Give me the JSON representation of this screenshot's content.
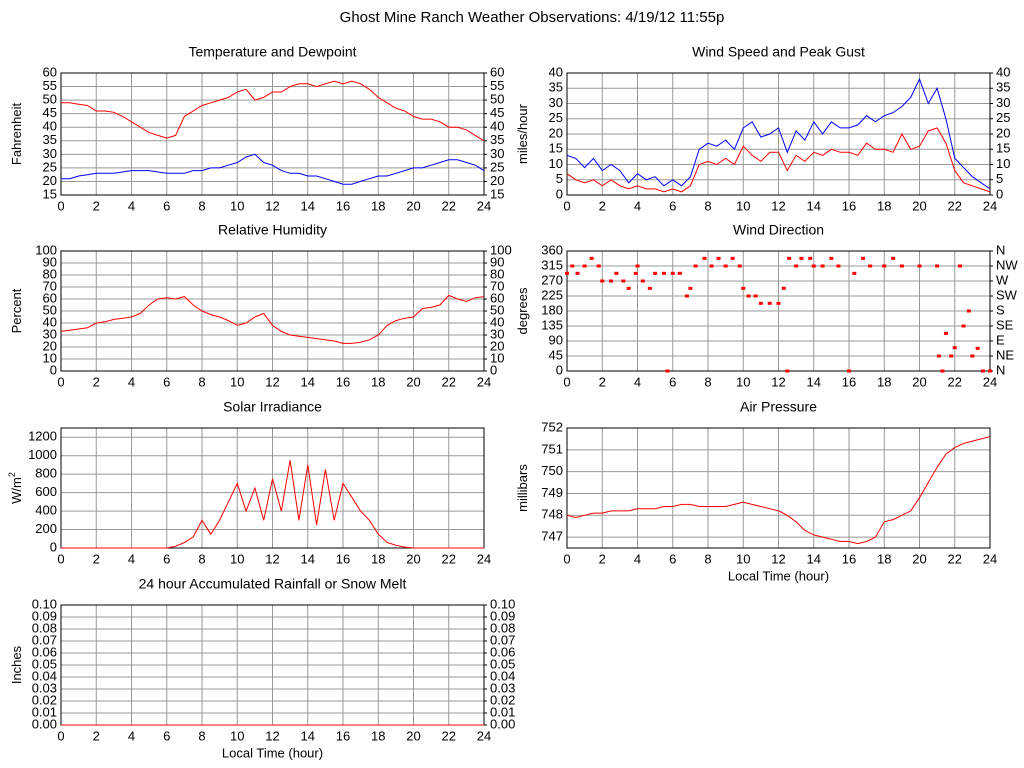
{
  "title": "Ghost Mine Ranch Weather Observations: 4/19/12 11:55p",
  "chart_data": [
    {
      "type": "line",
      "title": "Temperature and Dewpoint",
      "ylabel": "Fahrenheit",
      "x": [
        0,
        0.5,
        1,
        1.5,
        2,
        2.5,
        3,
        3.5,
        4,
        4.5,
        5,
        5.5,
        6,
        6.5,
        7,
        7.5,
        8,
        8.5,
        9,
        9.5,
        10,
        10.5,
        11,
        11.5,
        12,
        12.5,
        13,
        13.5,
        14,
        14.5,
        15,
        15.5,
        16,
        16.5,
        17,
        17.5,
        18,
        18.5,
        19,
        19.5,
        20,
        20.5,
        21,
        21.5,
        22,
        22.5,
        23,
        23.5,
        24
      ],
      "series": [
        {
          "color": "#ff0000",
          "values": [
            49,
            49,
            48.5,
            48,
            46,
            46,
            45.5,
            44,
            42,
            40,
            38,
            37,
            36,
            37,
            44,
            46,
            48,
            49,
            50,
            51,
            53,
            54,
            50,
            51,
            53,
            53,
            55,
            56,
            56,
            55,
            56,
            57,
            56,
            57,
            56,
            54,
            51,
            49,
            47,
            46,
            44,
            43,
            43,
            42,
            40,
            40,
            39,
            37,
            35
          ]
        },
        {
          "color": "#0000ff",
          "values": [
            21,
            21,
            22,
            22.5,
            23,
            23,
            23,
            23.5,
            24,
            24,
            24,
            23.5,
            23,
            23,
            23,
            24,
            24,
            25,
            25,
            26,
            27,
            29,
            30,
            27,
            26,
            24,
            23,
            23,
            22,
            22,
            21,
            20,
            19,
            19,
            20,
            21,
            22,
            22,
            23,
            24,
            25,
            25,
            26,
            27,
            28,
            28,
            27,
            26,
            24
          ]
        }
      ],
      "xlim": [
        0,
        24
      ],
      "xticks": [
        0,
        2,
        4,
        6,
        8,
        10,
        12,
        14,
        16,
        18,
        20,
        22,
        24
      ],
      "ylim": [
        15,
        60
      ],
      "yticks": [
        15,
        20,
        25,
        30,
        35,
        40,
        45,
        50,
        55,
        60
      ],
      "y2lim": [
        15,
        60
      ],
      "y2ticks": [
        15,
        20,
        25,
        30,
        35,
        40,
        45,
        50,
        55,
        60
      ],
      "grid": true
    },
    {
      "type": "line",
      "title": "Wind Speed and Peak Gust",
      "ylabel": "miles/hour",
      "x": [
        0,
        0.5,
        1,
        1.5,
        2,
        2.5,
        3,
        3.5,
        4,
        4.5,
        5,
        5.5,
        6,
        6.5,
        7,
        7.5,
        8,
        8.5,
        9,
        9.5,
        10,
        10.5,
        11,
        11.5,
        12,
        12.5,
        13,
        13.5,
        14,
        14.5,
        15,
        15.5,
        16,
        16.5,
        17,
        17.5,
        18,
        18.5,
        19,
        19.5,
        20,
        20.5,
        21,
        21.5,
        22,
        22.5,
        23,
        23.5,
        24
      ],
      "series": [
        {
          "color": "#ff0000",
          "values": [
            7,
            5,
            4,
            5,
            3,
            5,
            3,
            2,
            3,
            2,
            2,
            1,
            2,
            1,
            3,
            10,
            11,
            10,
            12,
            10,
            16,
            13,
            11,
            14,
            14,
            8,
            13,
            11,
            14,
            13,
            15,
            14,
            14,
            13,
            17,
            15,
            15,
            14,
            20,
            15,
            16,
            21,
            22,
            17,
            8,
            4,
            3,
            2,
            1
          ]
        },
        {
          "color": "#0000ff",
          "values": [
            13,
            12,
            9,
            12,
            8,
            10,
            8,
            4,
            7,
            5,
            6,
            3,
            5,
            3,
            6,
            15,
            17,
            16,
            18,
            15,
            22,
            24,
            19,
            20,
            22,
            14,
            21,
            18,
            24,
            20,
            24,
            22,
            22,
            23,
            26,
            24,
            26,
            27,
            29,
            32,
            38,
            30,
            35,
            25,
            12,
            9,
            6,
            4,
            2
          ]
        }
      ],
      "xlim": [
        0,
        24
      ],
      "xticks": [
        0,
        2,
        4,
        6,
        8,
        10,
        12,
        14,
        16,
        18,
        20,
        22,
        24
      ],
      "ylim": [
        0,
        40
      ],
      "yticks": [
        0,
        5,
        10,
        15,
        20,
        25,
        30,
        35,
        40
      ],
      "y2lim": [
        0,
        40
      ],
      "y2ticks": [
        0,
        5,
        10,
        15,
        20,
        25,
        30,
        35,
        40
      ],
      "grid": true
    },
    {
      "type": "line",
      "title": "Relative Humidity",
      "ylabel": "Percent",
      "x": [
        0,
        0.5,
        1,
        1.5,
        2,
        2.5,
        3,
        3.5,
        4,
        4.5,
        5,
        5.5,
        6,
        6.5,
        7,
        7.5,
        8,
        8.5,
        9,
        9.5,
        10,
        10.5,
        11,
        11.5,
        12,
        12.5,
        13,
        13.5,
        14,
        14.5,
        15,
        15.5,
        16,
        16.5,
        17,
        17.5,
        18,
        18.5,
        19,
        19.5,
        20,
        20.5,
        21,
        21.5,
        22,
        22.5,
        23,
        23.5,
        24
      ],
      "series": [
        {
          "color": "#ff0000",
          "values": [
            33,
            34,
            35,
            36,
            40,
            41,
            43,
            44,
            45,
            48,
            55,
            60,
            61,
            60,
            62,
            55,
            50,
            47,
            45,
            42,
            38,
            40,
            45,
            48,
            38,
            33,
            30,
            29,
            28,
            27,
            26,
            25,
            23,
            23,
            24,
            26,
            30,
            38,
            42,
            44,
            45,
            52,
            53,
            55,
            63,
            60,
            58,
            61,
            62
          ]
        }
      ],
      "xlim": [
        0,
        24
      ],
      "xticks": [
        0,
        2,
        4,
        6,
        8,
        10,
        12,
        14,
        16,
        18,
        20,
        22,
        24
      ],
      "ylim": [
        0,
        100
      ],
      "yticks": [
        0,
        10,
        20,
        30,
        40,
        50,
        60,
        70,
        80,
        90,
        100
      ],
      "y2lim": [
        0,
        100
      ],
      "y2ticks": [
        0,
        10,
        20,
        30,
        40,
        50,
        60,
        70,
        80,
        90,
        100
      ],
      "grid": true
    },
    {
      "type": "scatter",
      "title": "Wind Direction",
      "ylabel": "degrees",
      "x": [
        0,
        0.3,
        0.6,
        1,
        1.4,
        1.8,
        2,
        2.5,
        2.8,
        3.2,
        3.5,
        3.9,
        4,
        4.3,
        4.7,
        5,
        5.5,
        5.7,
        6,
        6.4,
        6.8,
        7,
        7.3,
        7.8,
        8.2,
        8.6,
        9,
        9.4,
        9.8,
        10,
        10.3,
        10.7,
        11,
        11.5,
        12,
        12.3,
        12.5,
        12.6,
        13,
        13.3,
        13.8,
        14,
        14.5,
        15,
        15.4,
        16,
        16.3,
        16.8,
        17.2,
        18,
        18.5,
        19,
        20,
        21,
        21.1,
        21.3,
        21.5,
        21.8,
        22,
        22.3,
        22.5,
        22.8,
        23,
        23.3,
        23.6,
        24
      ],
      "series": [
        {
          "color": "#ff0000",
          "values": [
            293,
            315,
            293,
            315,
            338,
            315,
            270,
            270,
            293,
            270,
            248,
            293,
            315,
            270,
            248,
            293,
            293,
            0,
            293,
            293,
            225,
            248,
            315,
            338,
            315,
            338,
            315,
            338,
            315,
            248,
            225,
            225,
            203,
            203,
            203,
            248,
            0,
            338,
            315,
            338,
            338,
            315,
            315,
            338,
            315,
            0,
            293,
            338,
            315,
            315,
            338,
            315,
            315,
            315,
            45,
            0,
            113,
            45,
            70,
            315,
            135,
            180,
            45,
            68,
            0,
            0
          ]
        }
      ],
      "xlim": [
        0,
        24
      ],
      "xticks": [
        0,
        2,
        4,
        6,
        8,
        10,
        12,
        14,
        16,
        18,
        20,
        22,
        24
      ],
      "ylim": [
        0,
        360
      ],
      "yticks": [
        0,
        45,
        90,
        135,
        180,
        225,
        270,
        315,
        360
      ],
      "y2lim": [
        0,
        360
      ],
      "y2ticks": [
        {
          "value": 0,
          "label": "N"
        },
        {
          "value": 45,
          "label": "NE"
        },
        {
          "value": 90,
          "label": "E"
        },
        {
          "value": 135,
          "label": "SE"
        },
        {
          "value": 180,
          "label": "S"
        },
        {
          "value": 225,
          "label": "SW"
        },
        {
          "value": 270,
          "label": "W"
        },
        {
          "value": 315,
          "label": "NW"
        },
        {
          "value": 360,
          "label": "N"
        }
      ],
      "grid": true
    },
    {
      "type": "line",
      "title": "Solar Irradiance",
      "ylabel": "W/m",
      "ylabel_sup": "2",
      "x": [
        0,
        0.5,
        1,
        1.5,
        2,
        2.5,
        3,
        3.5,
        4,
        4.5,
        5,
        5.5,
        6,
        6.5,
        7,
        7.5,
        8,
        8.5,
        9,
        9.5,
        10,
        10.5,
        11,
        11.5,
        12,
        12.5,
        13,
        13.5,
        14,
        14.5,
        15,
        15.5,
        16,
        16.5,
        17,
        17.5,
        18,
        18.5,
        19,
        19.5,
        20,
        20.5,
        21,
        21.5,
        22,
        22.5,
        23,
        23.5,
        24
      ],
      "series": [
        {
          "color": "#ff0000",
          "values": [
            0,
            0,
            0,
            0,
            0,
            0,
            0,
            0,
            0,
            0,
            0,
            0,
            0,
            20,
            60,
            120,
            300,
            150,
            300,
            500,
            700,
            400,
            650,
            300,
            750,
            400,
            950,
            300,
            900,
            250,
            850,
            300,
            700,
            550,
            400,
            300,
            150,
            60,
            30,
            10,
            0,
            0,
            0,
            0,
            0,
            0,
            0,
            0,
            0
          ]
        }
      ],
      "xlim": [
        0,
        24
      ],
      "xticks": [
        0,
        2,
        4,
        6,
        8,
        10,
        12,
        14,
        16,
        18,
        20,
        22,
        24
      ],
      "ylim": [
        0,
        1300
      ],
      "yticks": [
        0,
        200,
        400,
        600,
        800,
        1000,
        1200
      ],
      "grid": true
    },
    {
      "type": "line",
      "title": "Air Pressure",
      "ylabel": "millibars",
      "xlabel": "Local Time (hour)",
      "x": [
        0,
        0.5,
        1,
        1.5,
        2,
        2.5,
        3,
        3.5,
        4,
        4.5,
        5,
        5.5,
        6,
        6.5,
        7,
        7.5,
        8,
        8.5,
        9,
        9.5,
        10,
        10.5,
        11,
        11.5,
        12,
        12.5,
        13,
        13.5,
        14,
        14.5,
        15,
        15.5,
        16,
        16.5,
        17,
        17.5,
        18,
        18.5,
        19,
        19.5,
        20,
        20.5,
        21,
        21.5,
        22,
        22.5,
        23,
        23.5,
        24
      ],
      "series": [
        {
          "color": "#ff0000",
          "values": [
            748.0,
            747.9,
            748.0,
            748.1,
            748.1,
            748.2,
            748.2,
            748.2,
            748.3,
            748.3,
            748.3,
            748.4,
            748.4,
            748.5,
            748.5,
            748.4,
            748.4,
            748.4,
            748.4,
            748.5,
            748.6,
            748.5,
            748.4,
            748.3,
            748.2,
            748.0,
            747.7,
            747.3,
            747.1,
            747.0,
            746.9,
            746.8,
            746.8,
            746.7,
            746.8,
            747.0,
            747.7,
            747.8,
            748.0,
            748.2,
            748.8,
            749.5,
            750.2,
            750.8,
            751.1,
            751.3,
            751.4,
            751.5,
            751.6
          ]
        }
      ],
      "xlim": [
        0,
        24
      ],
      "xticks": [
        0,
        2,
        4,
        6,
        8,
        10,
        12,
        14,
        16,
        18,
        20,
        22,
        24
      ],
      "ylim": [
        746.5,
        752
      ],
      "yticks": [
        747,
        748,
        749,
        750,
        751,
        752
      ],
      "grid": true
    },
    {
      "type": "line",
      "title": "24 hour Accumulated Rainfall or Snow Melt",
      "ylabel": "Inches",
      "xlabel": "Local Time (hour)",
      "x": [
        0,
        24
      ],
      "series": [
        {
          "color": "#ff0000",
          "values": [
            0,
            0
          ]
        }
      ],
      "xlim": [
        0,
        24
      ],
      "xticks": [
        0,
        2,
        4,
        6,
        8,
        10,
        12,
        14,
        16,
        18,
        20,
        22,
        24
      ],
      "ylim": [
        0,
        0.1
      ],
      "yticks": [
        {
          "value": 0,
          "label": "0.00"
        },
        {
          "value": 0.01,
          "label": "0.01"
        },
        {
          "value": 0.02,
          "label": "0.02"
        },
        {
          "value": 0.03,
          "label": "0.03"
        },
        {
          "value": 0.04,
          "label": "0.04"
        },
        {
          "value": 0.05,
          "label": "0.05"
        },
        {
          "value": 0.06,
          "label": "0.06"
        },
        {
          "value": 0.07,
          "label": "0.07"
        },
        {
          "value": 0.08,
          "label": "0.08"
        },
        {
          "value": 0.09,
          "label": "0.09"
        },
        {
          "value": 0.1,
          "label": "0.10"
        }
      ],
      "y2lim": [
        0,
        0.1
      ],
      "y2ticks": [
        {
          "value": 0,
          "label": "0.00"
        },
        {
          "value": 0.01,
          "label": "0.01"
        },
        {
          "value": 0.02,
          "label": "0.02"
        },
        {
          "value": 0.03,
          "label": "0.03"
        },
        {
          "value": 0.04,
          "label": "0.04"
        },
        {
          "value": 0.05,
          "label": "0.05"
        },
        {
          "value": 0.06,
          "label": "0.06"
        },
        {
          "value": 0.07,
          "label": "0.07"
        },
        {
          "value": 0.08,
          "label": "0.08"
        },
        {
          "value": 0.09,
          "label": "0.09"
        },
        {
          "value": 0.1,
          "label": "0.10"
        }
      ],
      "grid": true
    }
  ]
}
